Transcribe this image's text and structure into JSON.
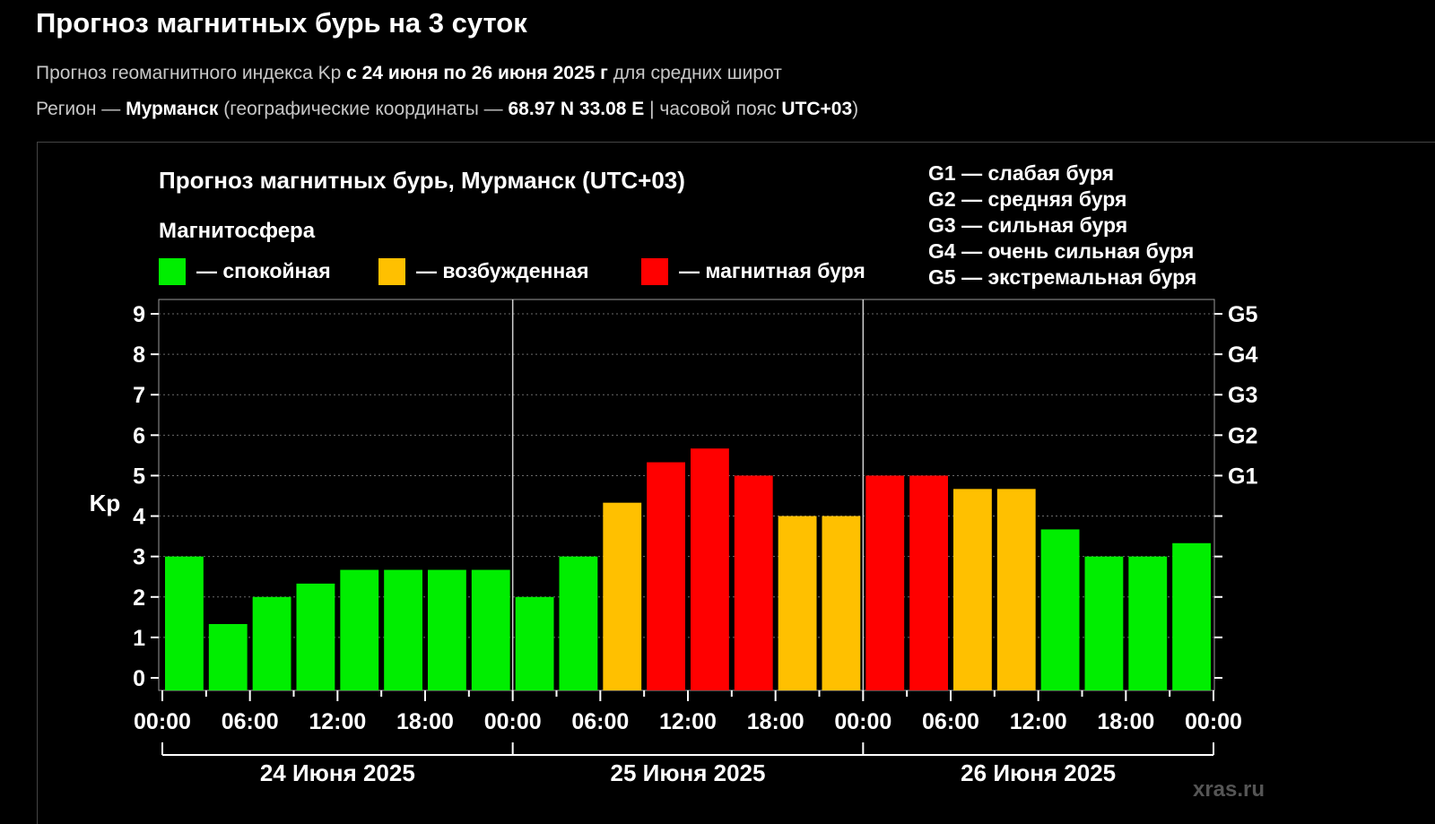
{
  "page": {
    "title": "Прогноз магнитных бурь на 3 суток",
    "line1": {
      "a": "Прогноз геомагнитного индекса Kp ",
      "b": "с 24 июня по 26 июня 2025 г",
      "c": " для средних широт"
    },
    "line2": {
      "a": "Регион — ",
      "b": "Мурманск",
      "c": " (географические координаты — ",
      "d": "68.97 N 33.08 E",
      "e": " | часовой пояс ",
      "f": "UTC+03",
      "g": ")"
    }
  },
  "chart_data": {
    "type": "bar",
    "title": "Прогноз магнитных бурь, Мурманск (UTC+03)",
    "legend_title": "Магнитосфера",
    "legend": [
      {
        "label": "— спокойная",
        "color": "#00ee00"
      },
      {
        "label": "— возбужденная",
        "color": "#ffc000"
      },
      {
        "label": "— магнитная буря",
        "color": "#ff0000"
      }
    ],
    "g_scale_legend": [
      "G1 — слабая буря",
      "G2 — средняя буря",
      "G3 — сильная буря",
      "G4 — очень сильная буря",
      "G5 — экстремальная буря"
    ],
    "ylabel": "Kp",
    "ylim": [
      0,
      9
    ],
    "yticks": [
      0,
      1,
      2,
      3,
      4,
      5,
      6,
      7,
      8,
      9
    ],
    "right_axis": [
      {
        "kp": 5,
        "label": "G1"
      },
      {
        "kp": 6,
        "label": "G2"
      },
      {
        "kp": 7,
        "label": "G3"
      },
      {
        "kp": 8,
        "label": "G4"
      },
      {
        "kp": 9,
        "label": "G5"
      }
    ],
    "x_tick_labels": [
      "00:00",
      "06:00",
      "12:00",
      "18:00",
      "00:00",
      "06:00",
      "12:00",
      "18:00",
      "00:00",
      "06:00",
      "12:00",
      "18:00",
      "00:00"
    ],
    "days": [
      "24 Июня 2025",
      "25 Июня 2025",
      "26 Июня 2025"
    ],
    "interval_hours": 3,
    "values": [
      3.0,
      1.33,
      2.0,
      2.33,
      2.67,
      2.67,
      2.67,
      2.67,
      2.0,
      3.0,
      4.33,
      5.33,
      5.67,
      5.0,
      4.0,
      4.0,
      5.0,
      5.0,
      4.67,
      4.67,
      3.67,
      3.0,
      3.0,
      3.33
    ],
    "colors": [
      "#00ee00",
      "#00ee00",
      "#00ee00",
      "#00ee00",
      "#00ee00",
      "#00ee00",
      "#00ee00",
      "#00ee00",
      "#00ee00",
      "#00ee00",
      "#ffc000",
      "#ff0000",
      "#ff0000",
      "#ff0000",
      "#ffc000",
      "#ffc000",
      "#ff0000",
      "#ff0000",
      "#ffc000",
      "#ffc000",
      "#00ee00",
      "#00ee00",
      "#00ee00",
      "#00ee00"
    ],
    "grid": true,
    "watermark": "xras.ru"
  }
}
